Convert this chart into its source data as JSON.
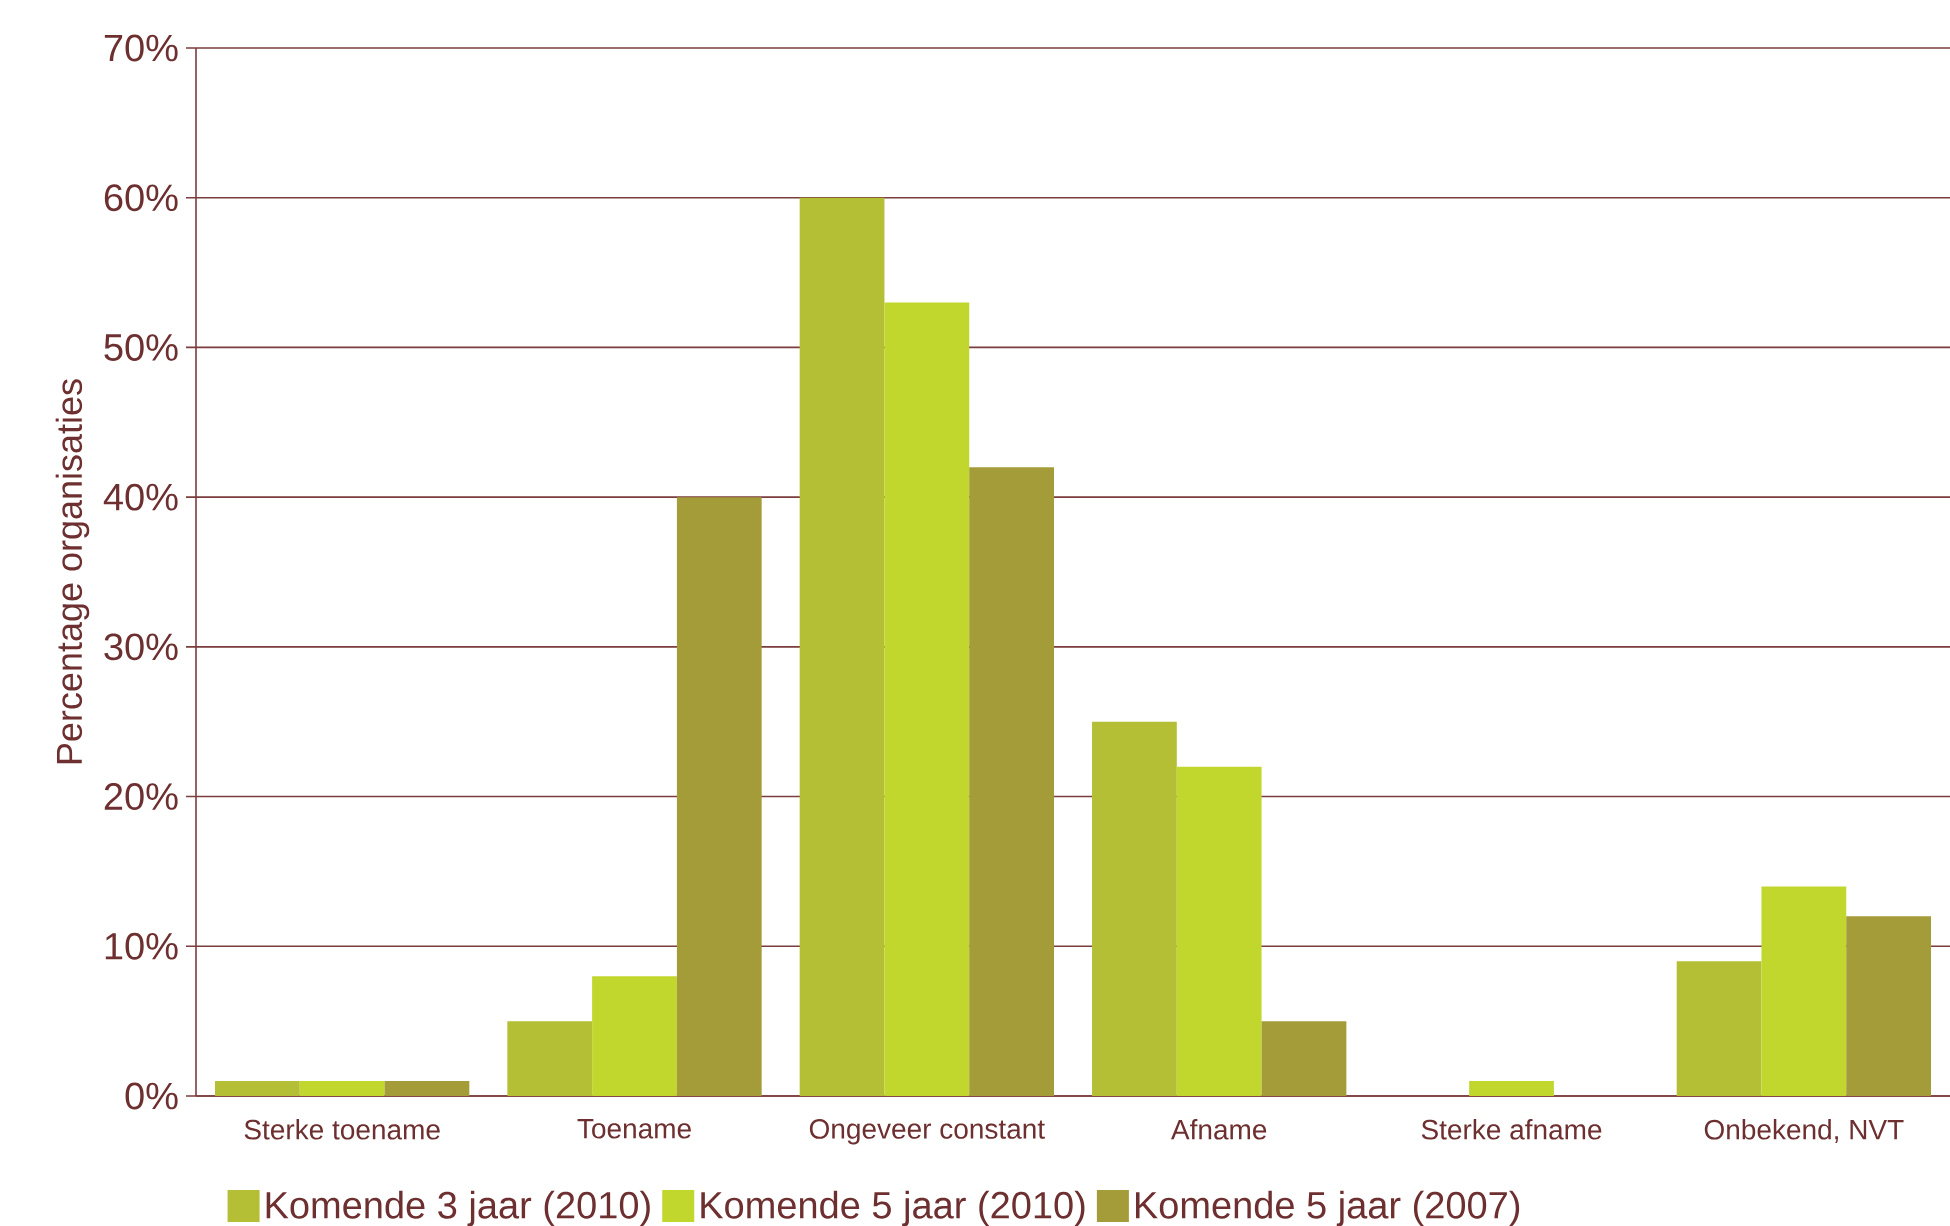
{
  "chart_data": {
    "type": "bar",
    "ylabel": "Percentage organisaties",
    "categories": [
      "Sterke toename",
      "Toename",
      "Ongeveer constant",
      "Afname",
      "Sterke afname",
      "Onbekend, NVT"
    ],
    "series": [
      {
        "name": "Komende 3 jaar (2010)",
        "color": "#b5bf35",
        "values": [
          1,
          5,
          60,
          25,
          0,
          9
        ]
      },
      {
        "name": "Komende 5 jaar (2010)",
        "color": "#c1d72e",
        "values": [
          1,
          8,
          53,
          22,
          1,
          14
        ]
      },
      {
        "name": "Komende 5 jaar (2007)",
        "color": "#a39c38",
        "values": [
          1,
          40,
          42,
          5,
          0,
          12
        ]
      }
    ],
    "ylim": [
      0,
      70
    ],
    "yticks": [
      {
        "value": 0,
        "label": "0%"
      },
      {
        "value": 10,
        "label": "10%"
      },
      {
        "value": 20,
        "label": "20%"
      },
      {
        "value": 30,
        "label": "30%"
      },
      {
        "value": 40,
        "label": "40%"
      },
      {
        "value": 50,
        "label": "50%"
      },
      {
        "value": 60,
        "label": "60%"
      },
      {
        "value": 70,
        "label": "70%"
      }
    ],
    "grid": "y",
    "legend": "bottom"
  }
}
